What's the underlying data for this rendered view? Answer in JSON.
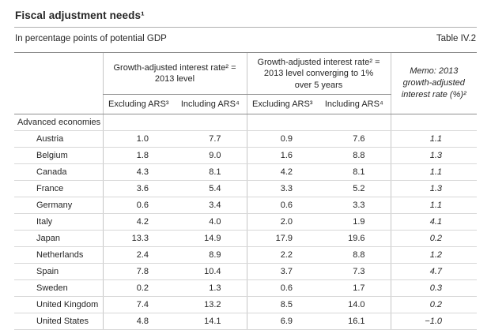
{
  "page": {
    "title": "Fiscal adjustment needs¹",
    "subtitle": "In percentage points of potential GDP",
    "table_label": "Table IV.2"
  },
  "table": {
    "group_headers": [
      "Growth-adjusted interest rate² = 2013 level",
      "Growth-adjusted interest rate² = 2013 level converging to 1% over 5 years",
      "Memo: 2013 growth-adjusted interest rate (%)²"
    ],
    "sub_headers": [
      "Excluding ARS³",
      "Including ARS⁴",
      "Excluding ARS³",
      "Including ARS⁴"
    ],
    "section_label": "Advanced economies",
    "rows": [
      {
        "country": "Austria",
        "values": [
          "1.0",
          "7.7",
          "0.9",
          "7.6",
          "1.1"
        ]
      },
      {
        "country": "Belgium",
        "values": [
          "1.8",
          "9.0",
          "1.6",
          "8.8",
          "1.3"
        ]
      },
      {
        "country": "Canada",
        "values": [
          "4.3",
          "8.1",
          "4.2",
          "8.1",
          "1.1"
        ]
      },
      {
        "country": "France",
        "values": [
          "3.6",
          "5.4",
          "3.3",
          "5.2",
          "1.3"
        ]
      },
      {
        "country": "Germany",
        "values": [
          "0.6",
          "3.4",
          "0.6",
          "3.3",
          "1.1"
        ]
      },
      {
        "country": "Italy",
        "values": [
          "4.2",
          "4.0",
          "2.0",
          "1.9",
          "4.1"
        ]
      },
      {
        "country": "Japan",
        "values": [
          "13.3",
          "14.9",
          "17.9",
          "19.6",
          "0.2"
        ]
      },
      {
        "country": "Netherlands",
        "values": [
          "2.4",
          "8.9",
          "2.2",
          "8.8",
          "1.2"
        ]
      },
      {
        "country": "Spain",
        "values": [
          "7.8",
          "10.4",
          "3.7",
          "7.3",
          "4.7"
        ]
      },
      {
        "country": "Sweden",
        "values": [
          "0.2",
          "1.3",
          "0.6",
          "1.7",
          "0.3"
        ]
      },
      {
        "country": "United Kingdom",
        "values": [
          "7.4",
          "13.2",
          "8.5",
          "14.0",
          "0.2"
        ]
      },
      {
        "country": "United States",
        "values": [
          "4.8",
          "14.1",
          "6.9",
          "16.1",
          "−1.0"
        ]
      }
    ]
  }
}
